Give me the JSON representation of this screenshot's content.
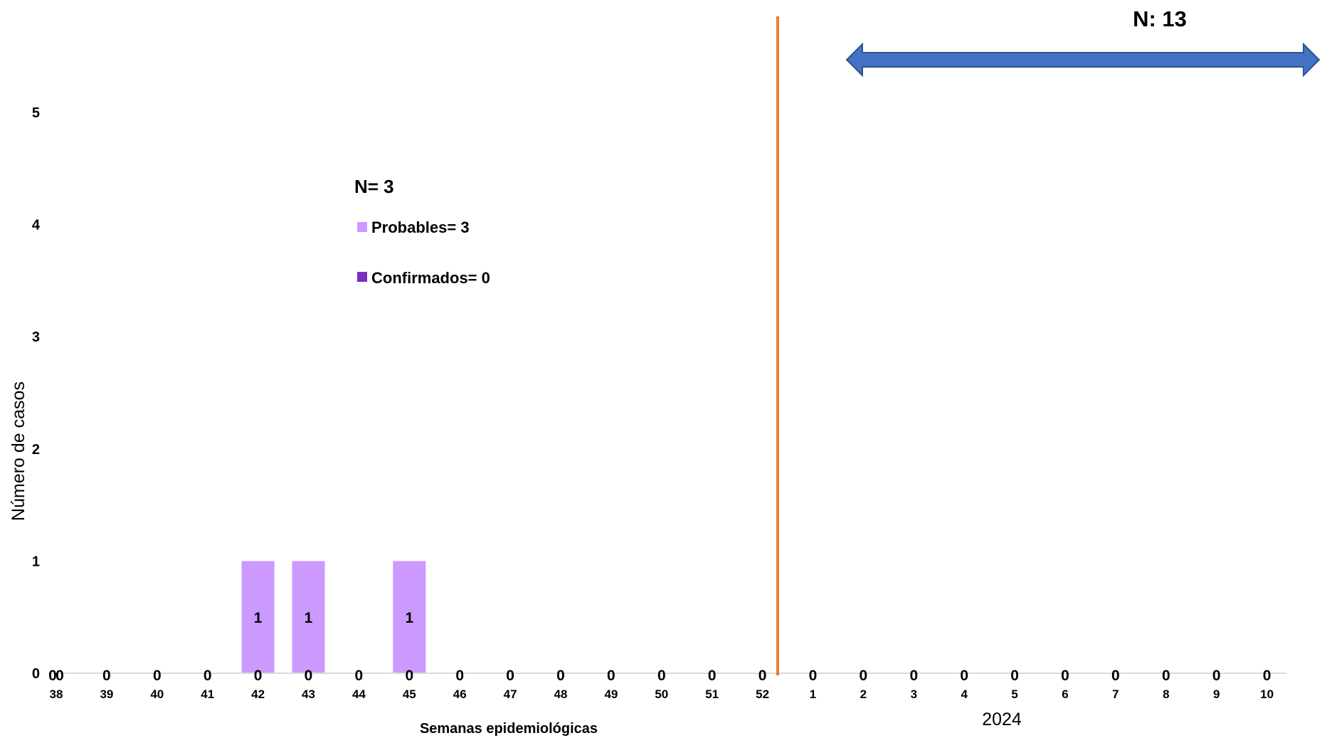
{
  "chart_data": {
    "type": "bar",
    "xlabel": "Semanas epidemiológicas",
    "ylabel": "Número de casos",
    "ylim": [
      0,
      5
    ],
    "y_ticks": [
      "0",
      "1",
      "2",
      "3",
      "4",
      "5"
    ],
    "categories": [
      "38",
      "39",
      "40",
      "41",
      "42",
      "43",
      "44",
      "45",
      "46",
      "47",
      "48",
      "49",
      "50",
      "51",
      "52",
      "1",
      "2",
      "3",
      "4",
      "5",
      "6",
      "7",
      "8",
      "9",
      "10"
    ],
    "series": [
      {
        "name": "Probables",
        "color": "#cc99ff",
        "values": [
          0,
          0,
          0,
          0,
          1,
          1,
          0,
          1,
          0,
          0,
          0,
          0,
          0,
          0,
          0,
          0,
          0,
          0,
          0,
          0,
          0,
          0,
          0,
          0,
          0
        ],
        "data_labels": [
          "0",
          "0",
          "0",
          "0",
          "1",
          "1",
          "0",
          "1",
          "0",
          "0",
          "0",
          "0",
          "0",
          "0",
          "0",
          "0",
          "0",
          "0",
          "0",
          "0",
          "0",
          "0",
          "0",
          "0",
          "0"
        ]
      },
      {
        "name": "Confirmados",
        "color": "#7b2fbe",
        "values": [
          0,
          0,
          0,
          0,
          0,
          0,
          0,
          0,
          0,
          0,
          0,
          0,
          0,
          0,
          0,
          0,
          0,
          0,
          0,
          0,
          0,
          0,
          0,
          0,
          0
        ],
        "data_labels": [
          "0",
          "",
          "",
          "",
          "0",
          "0",
          "",
          "0",
          "",
          "",
          "",
          "",
          "",
          "",
          "",
          "",
          "",
          "",
          "",
          "",
          "",
          "",
          "",
          "",
          ""
        ]
      }
    ],
    "legend": {
      "title": "N= 3",
      "items": [
        {
          "label": "Probables= 3",
          "color": "#cc99ff"
        },
        {
          "label": "Confirmados= 0",
          "color": "#7b2fbe"
        }
      ]
    },
    "annotations": {
      "year_label": "2024",
      "arrow_label": "N: 13",
      "divider_after_category": "52",
      "divider_color": "#ed7d31",
      "arrow_color": "#4472c4"
    },
    "grid": false
  }
}
